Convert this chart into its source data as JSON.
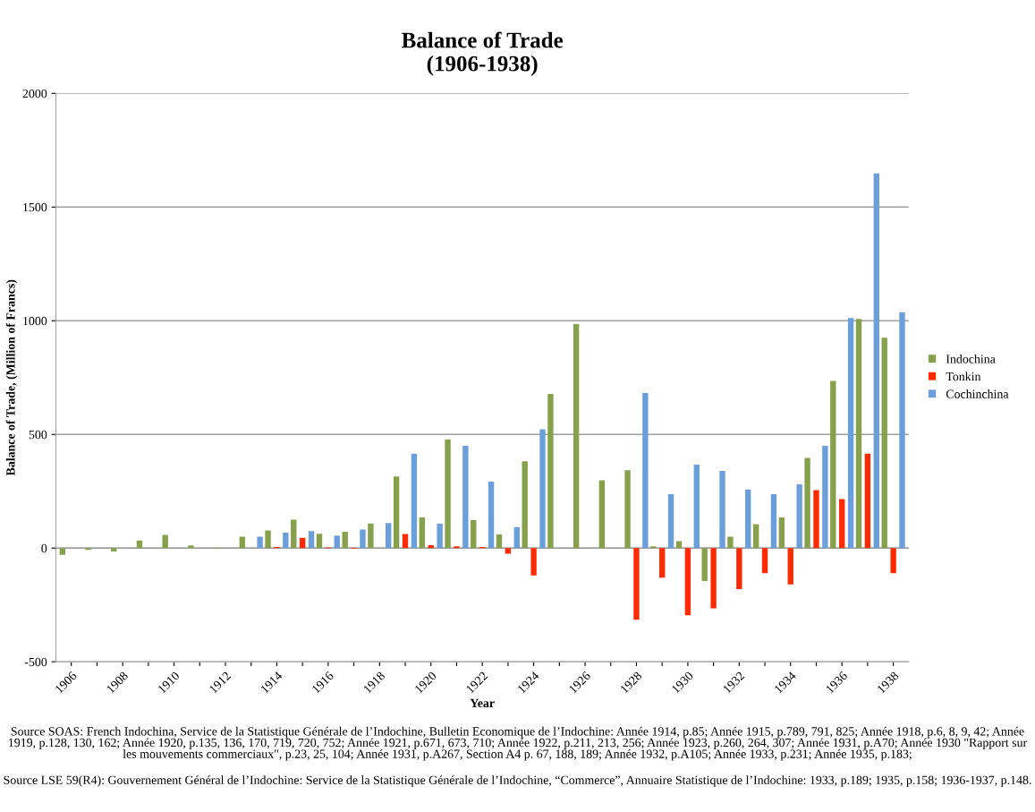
{
  "chart_data": {
    "type": "bar",
    "title": "Balance of Trade\n(1906-1938)",
    "xlabel": "Year",
    "ylabel": "Balance of Trade, (Million of Francs)",
    "categories": [
      "1906",
      null,
      "1908",
      null,
      "1910",
      null,
      "1912",
      null,
      "1914",
      null,
      "1916",
      null,
      "1918",
      null,
      "1920",
      null,
      "1922",
      null,
      "1924",
      null,
      "1926",
      null,
      "1928",
      null,
      "1930",
      null,
      "1932",
      null,
      "1934",
      null,
      "1936",
      null,
      "1938"
    ],
    "series": [
      {
        "name": "Indochina",
        "color": "#86a04c",
        "values": [
          -30,
          -8,
          -15,
          33,
          58,
          12,
          -3,
          50,
          78,
          125,
          63,
          72,
          108,
          315,
          135,
          478,
          123,
          60,
          382,
          678,
          985,
          298,
          342,
          8,
          30,
          -145,
          50,
          105,
          135,
          397,
          735,
          1008,
          925
        ]
      },
      {
        "name": "Tonkin",
        "color": "#ff2a00",
        "values": [
          null,
          null,
          null,
          null,
          null,
          null,
          null,
          null,
          5,
          45,
          3,
          -3,
          null,
          62,
          13,
          8,
          5,
          -25,
          -120,
          null,
          null,
          null,
          -315,
          -130,
          -295,
          -265,
          -180,
          -110,
          -160,
          255,
          215,
          415,
          -110
        ]
      },
      {
        "name": "Cochinchina",
        "color": "#6a9fdc",
        "values": [
          null,
          null,
          null,
          null,
          null,
          null,
          null,
          50,
          68,
          75,
          55,
          82,
          110,
          415,
          107,
          450,
          292,
          92,
          523,
          null,
          null,
          null,
          682,
          237,
          367,
          340,
          258,
          237,
          280,
          450,
          1012,
          1648,
          1037
        ]
      }
    ],
    "ylim": [
      -500,
      2000
    ],
    "yticks": [
      -500,
      0,
      500,
      1000,
      1500,
      2000
    ],
    "grid": "y",
    "legend": "right",
    "annotations": [
      "Source SOAS: French Indochina, Service de la Statistique Générale de l’Indochine, Bulletin Economique de l’Indochine: Année 1914, p.85; Année 1915, p.789, 791, 825; Année 1918, p.6, 8, 9, 42; Année 1919, p.128, 130, 162; Année 1920, p.135, 136, 170, 719, 720, 752; Année 1921, p.671, 673, 710; Année 1922, p.211, 213, 256; Année 1923, p.260, 264, 307; Année 1931, p.A70; Année 1930 \"Rapport sur les mouvements commerciaux\", p.23, 25, 104; Année 1931, p.A267, Section A4 p. 67, 188, 189; Année 1932, p.A105; Année 1933, p.231; Année 1935, p.183;",
      "Source LSE 59(R4): Gouvernement Général de l’Indochine: Service de la Statistique Générale de l’Indochine, “Commerce”, Annuaire Statistique de l’Indochine: 1933, p.189; 1935, p.158; 1936-1937, p.148."
    ]
  }
}
